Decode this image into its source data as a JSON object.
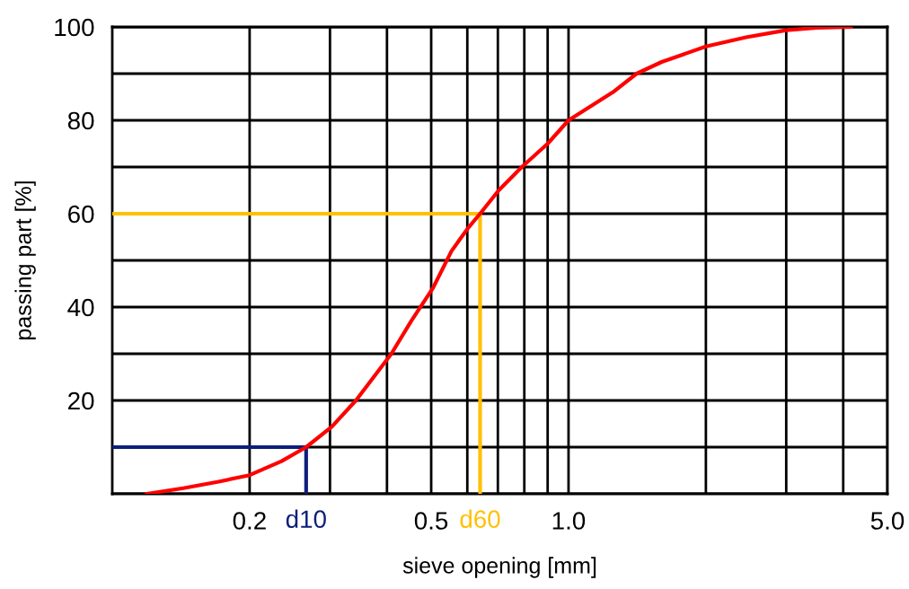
{
  "chart_data": {
    "type": "line",
    "xlabel": "sieve opening [mm]",
    "ylabel": "passing part [%]",
    "log": "x",
    "xlim": [
      0.1,
      5
    ],
    "ylim": [
      0,
      100
    ],
    "xticks": [
      {
        "value": 0.2,
        "label": "0.2"
      },
      {
        "value": 0.3,
        "label": null
      },
      {
        "value": 0.4,
        "label": null
      },
      {
        "value": 0.5,
        "label": "0.5"
      },
      {
        "value": 0.6,
        "label": null
      },
      {
        "value": 0.7,
        "label": null
      },
      {
        "value": 0.8,
        "label": null
      },
      {
        "value": 0.9,
        "label": null
      },
      {
        "value": 1.0,
        "label": "1.0"
      },
      {
        "value": 2,
        "label": null
      },
      {
        "value": 3,
        "label": null
      },
      {
        "value": 4,
        "label": null
      },
      {
        "value": 5,
        "label": "5.0"
      }
    ],
    "yticks": [
      {
        "value": 0,
        "label": null
      },
      {
        "value": 10,
        "label": null
      },
      20,
      {
        "value": 30,
        "label": null
      },
      40,
      {
        "value": 50,
        "label": null
      },
      60,
      {
        "value": 70,
        "label": null
      },
      80,
      {
        "value": 90,
        "label": null
      },
      100
    ],
    "grid": true,
    "marker": "none",
    "line_style": "solid",
    "series": [
      {
        "color": "#ff0000",
        "x": [
          0.119,
          0.143,
          0.171,
          0.2,
          0.235,
          0.266,
          0.303,
          0.342,
          0.409,
          0.452,
          0.504,
          0.554,
          0.603,
          0.64,
          0.703,
          0.79,
          0.9,
          1.0,
          1.25,
          1.41,
          1.6,
          2.0,
          2.45,
          3.0,
          3.5,
          4.16
        ],
        "values": [
          0,
          1.2,
          2.6,
          4,
          7,
          10,
          14.4,
          20,
          30,
          37,
          44,
          52,
          57,
          60,
          65,
          70,
          75,
          80,
          86,
          90,
          92.5,
          95.8,
          97.8,
          99.3,
          99.8,
          100
        ]
      },
      {
        "color": "#0d1f7a",
        "x": [
          0.1,
          0.266,
          0.266
        ],
        "values": [
          10,
          10,
          0
        ]
      },
      {
        "color": "#ffc000",
        "x": [
          0.1,
          0.64,
          0.64
        ],
        "values": [
          60,
          60,
          0
        ]
      }
    ],
    "annotations": [
      {
        "text": "d10",
        "x": 0.266,
        "y": 0
      },
      {
        "text": "d60",
        "x": 0.64,
        "y": 0
      }
    ]
  }
}
